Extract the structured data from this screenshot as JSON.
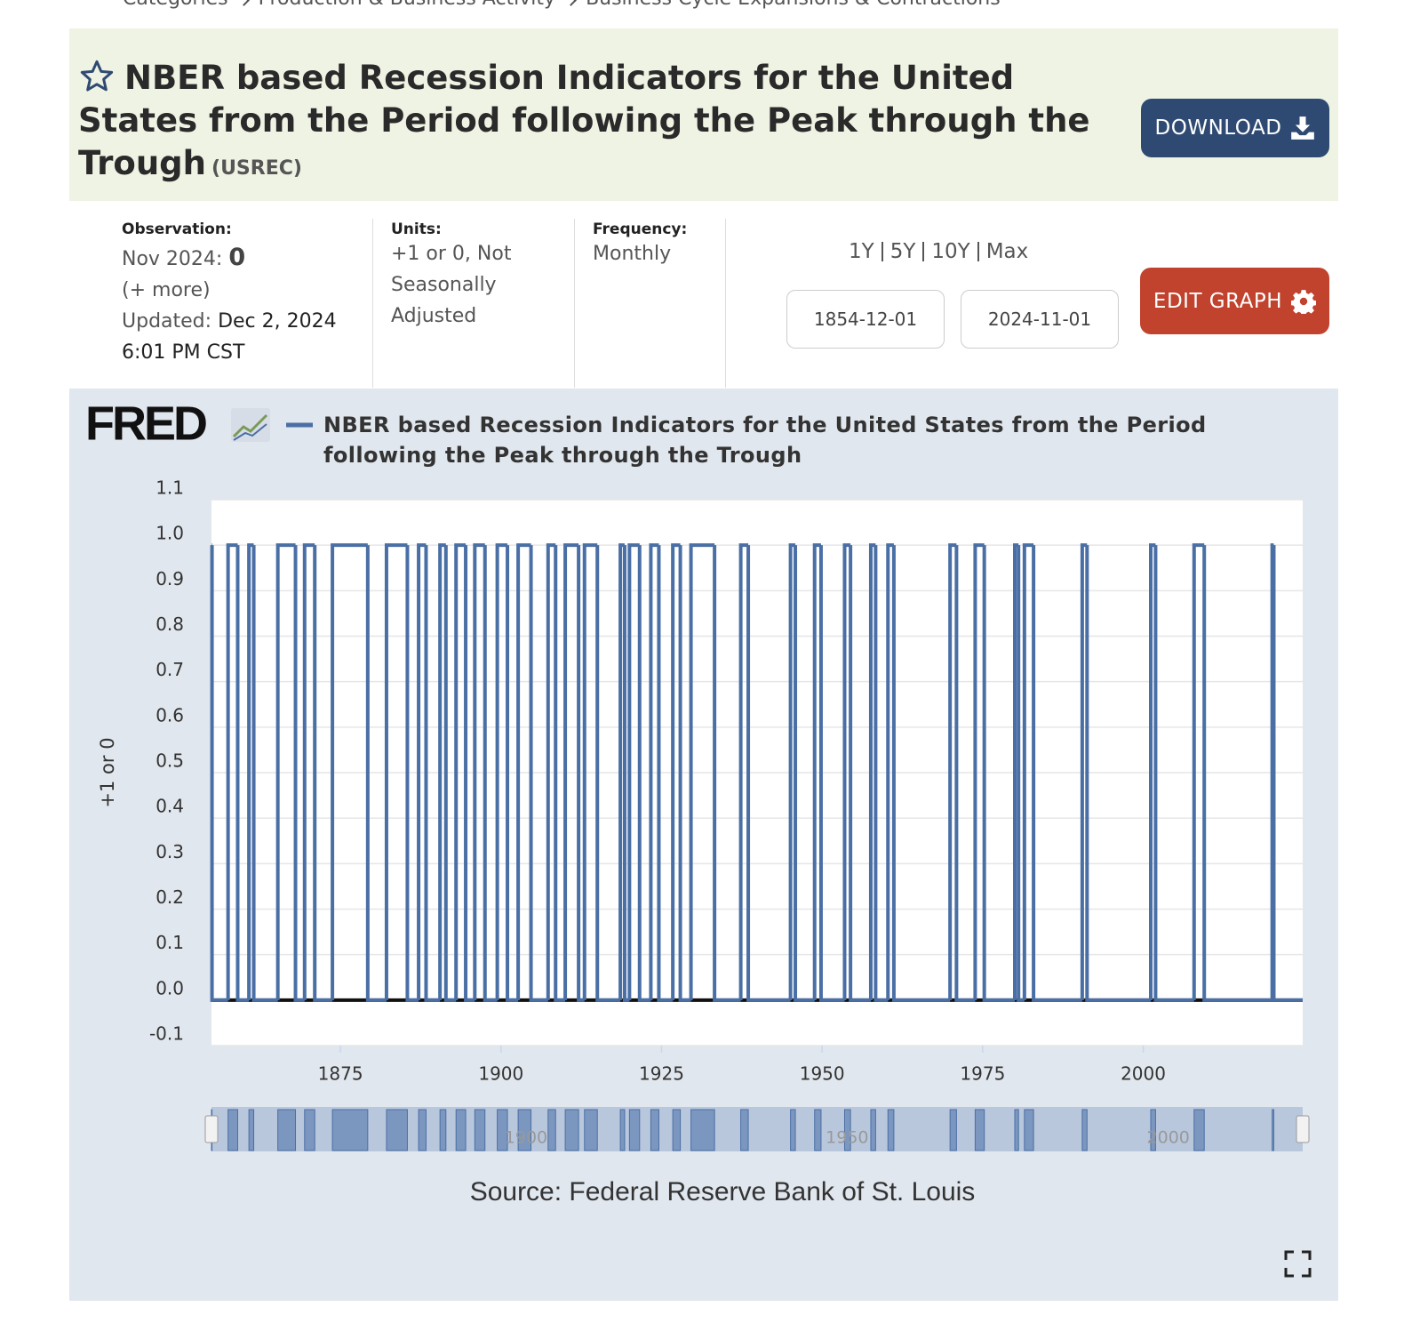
{
  "breadcrumb": [
    "Categories",
    "Production & Business Activity",
    "Business Cycle Expansions & Contractions"
  ],
  "header": {
    "title": "NBER based Recession Indicators for the United States from the Period following the Peak through the Trough",
    "series_id": "(USREC)",
    "download": "DOWNLOAD"
  },
  "meta": {
    "observation_label": "Observation:",
    "observation_date": "Nov 2024:",
    "observation_value": "0",
    "more": "(+ more)",
    "updated_label": "Updated:",
    "updated": "Dec 2, 2024 6:01 PM CST",
    "units_label": "Units:",
    "units": "+1 or 0, Not Seasonally Adjusted",
    "frequency_label": "Frequency:",
    "frequency": "Monthly"
  },
  "range": {
    "buttons": [
      "1Y",
      "5Y",
      "10Y",
      "Max"
    ],
    "start": "1854-12-01",
    "end": "2024-11-01",
    "edit": "EDIT GRAPH"
  },
  "chart_data": {
    "type": "line",
    "step": "after",
    "logo": "FRED",
    "y_label": "+1 or 0",
    "source": "Source: Federal Reserve Bank of St. Louis",
    "x": [
      1854.92,
      1855.0,
      1857.5,
      1859.0,
      1860.75,
      1861.5,
      1865.25,
      1868.0,
      1869.42,
      1871.0,
      1873.75,
      1879.25,
      1882.17,
      1885.42,
      1887.17,
      1888.33,
      1890.5,
      1891.42,
      1893.0,
      1894.5,
      1895.92,
      1897.5,
      1899.42,
      1901.0,
      1902.67,
      1904.67,
      1907.33,
      1908.5,
      1910.0,
      1912.08,
      1913.0,
      1915.0,
      1918.58,
      1919.25,
      1920.0,
      1921.58,
      1923.33,
      1924.58,
      1926.75,
      1927.92,
      1929.58,
      1933.25,
      1937.33,
      1938.5,
      1945.08,
      1945.83,
      1948.83,
      1949.83,
      1953.5,
      1954.42,
      1957.58,
      1958.33,
      1960.25,
      1961.17,
      1969.92,
      1970.92,
      1973.83,
      1975.25,
      1980.0,
      1980.58,
      1981.5,
      1982.92,
      1990.5,
      1991.25,
      2001.17,
      2001.92,
      2007.92,
      2009.5,
      2020.08,
      2020.33,
      2024.83
    ],
    "series": [
      {
        "name": "NBER based Recession Indicators for the United States from the Period following the Peak through the Trough",
        "color": "#4a6fa5",
        "values": [
          1,
          0,
          1,
          0,
          1,
          0,
          1,
          0,
          1,
          0,
          1,
          0,
          1,
          0,
          1,
          0,
          1,
          0,
          1,
          0,
          1,
          0,
          1,
          0,
          1,
          0,
          1,
          0,
          1,
          0,
          1,
          0,
          1,
          0,
          1,
          0,
          1,
          0,
          1,
          0,
          1,
          0,
          1,
          0,
          1,
          0,
          1,
          0,
          1,
          0,
          1,
          0,
          1,
          0,
          1,
          0,
          1,
          0,
          1,
          0,
          1,
          0,
          1,
          0,
          1,
          0,
          1,
          0,
          1,
          0,
          0
        ]
      }
    ],
    "xlim": [
      1854.92,
      2024.83
    ],
    "xticks": [
      1875,
      1900,
      1925,
      1950,
      1975,
      2000
    ],
    "ylim": [
      -0.1,
      1.1
    ],
    "yticks": [
      -0.1,
      {
        "value": 0,
        "label": "0.0"
      },
      0.1,
      0.2,
      0.3,
      0.4,
      0.5,
      0.6,
      0.7,
      0.8,
      0.9,
      {
        "value": 1,
        "label": "1.0"
      },
      1.1
    ],
    "grid": true,
    "navigator_xticks": [
      1900,
      1950,
      2000
    ]
  }
}
